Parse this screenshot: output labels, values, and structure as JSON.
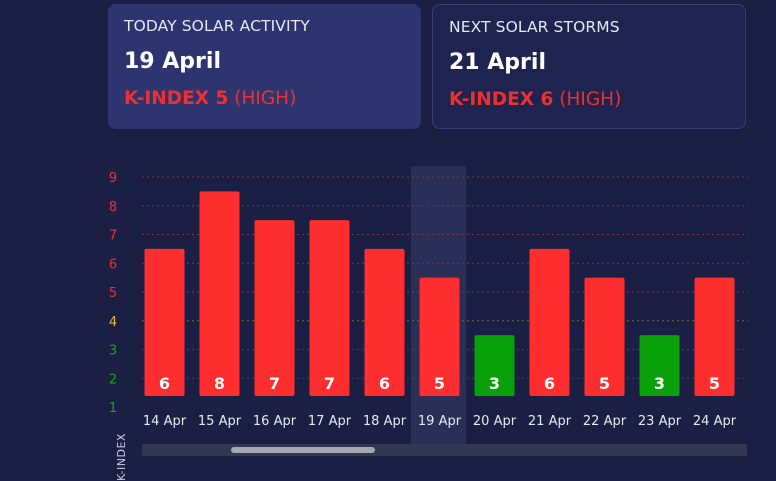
{
  "cards": {
    "today": {
      "title": "TODAY SOLAR ACTIVITY",
      "date": "19 April",
      "kindex_label": "K-INDEX 5",
      "level": "(HIGH)"
    },
    "next": {
      "title": "NEXT SOLAR STORMS",
      "date": "21 April",
      "kindex_label": "K-INDEX 6",
      "level": "(HIGH)"
    }
  },
  "chart_data": {
    "type": "bar",
    "categories": [
      "14 Apr",
      "15 Apr",
      "16 Apr",
      "17 Apr",
      "18 Apr",
      "19 Apr",
      "20 Apr",
      "21 Apr",
      "22 Apr",
      "23 Apr",
      "24 Apr"
    ],
    "values": [
      6,
      8,
      7,
      7,
      6,
      5,
      3,
      6,
      5,
      3,
      5
    ],
    "ylabel": "K-INDEX",
    "ylim": [
      1,
      9
    ],
    "yticks": [
      1,
      2,
      3,
      4,
      5,
      6,
      7,
      8,
      9
    ],
    "highlighted_category": "19 Apr",
    "colors": {
      "high": "#ff2e2e",
      "low": "#0aa00a",
      "tick_low": "#18a818",
      "tick_mid": "#e6b830",
      "tick_high": "#ee3030"
    }
  }
}
